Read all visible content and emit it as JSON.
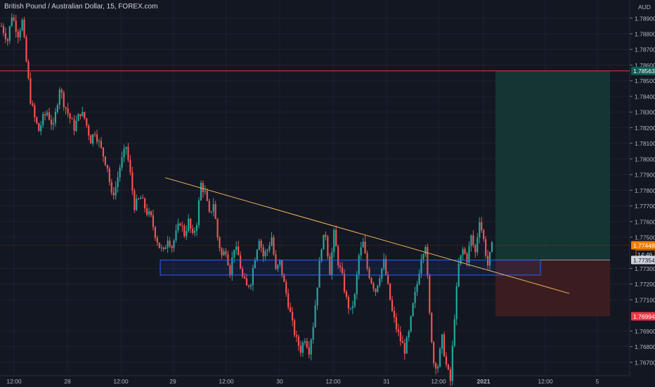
{
  "title": "British Pound / Australian Dollar, 15, FOREX.com",
  "currency": "AUD",
  "colors": {
    "background": "#131722",
    "up": "#26a69a",
    "down": "#ef5350",
    "axis_text": "#b2b5be",
    "grid": "#1e222d",
    "resistance_line": "#e53935",
    "trendline": "#f0b15a",
    "support_box": "#2962ff",
    "target_zone": "#163b36",
    "stop_zone": "#3d1e22",
    "price_tag": "#f57c00",
    "stop_tag": "#f23645",
    "target_tag": "#0e5e54"
  },
  "chart_data": {
    "type": "candlestick",
    "symbol": "British Pound / Australian Dollar",
    "interval": "15",
    "source": "FOREX.com",
    "y_axis": {
      "unit": "AUD",
      "range": [
        1.7665,
        1.7898
      ],
      "ticks": [
        "1.78900",
        "1.78800",
        "1.78700",
        "1.78600",
        "1.78500",
        "1.78400",
        "1.78300",
        "1.78200",
        "1.78100",
        "1.78000",
        "1.77900",
        "1.77800",
        "1.77700",
        "1.77600",
        "1.77500",
        "1.77300",
        "1.77200",
        "1.77100",
        "1.76900",
        "1.76800",
        "1.76700"
      ]
    },
    "x_axis": {
      "ticks": [
        "12:00",
        "28",
        "12:00",
        "29",
        "12:00",
        "30",
        "12:00",
        "31",
        "12:00",
        "2021",
        "12:00",
        "5"
      ]
    },
    "price_labels": {
      "target": "1.78563",
      "current": "1.77448",
      "countdown": "14:46",
      "entry": "1.77354",
      "stop": "1.76994"
    },
    "levels": {
      "resistance": 1.78563,
      "current": 1.77448,
      "entry": 1.77354,
      "stop": 1.76994,
      "support_zone": [
        1.7728,
        1.7734
      ]
    },
    "trendline": {
      "start": {
        "x_label": "29 (before open)",
        "price": 1.7788
      },
      "end": {
        "x_label": "1 Jan, after 12:00",
        "price": 1.7714
      }
    },
    "path": [
      [
        0,
        1.7885
      ],
      [
        3,
        1.7876
      ],
      [
        5,
        1.7892
      ],
      [
        8,
        1.788
      ],
      [
        10,
        1.7888
      ],
      [
        12,
        1.7862
      ],
      [
        14,
        1.7838
      ],
      [
        16,
        1.7826
      ],
      [
        18,
        1.7818
      ],
      [
        20,
        1.7826
      ],
      [
        22,
        1.783
      ],
      [
        25,
        1.782
      ],
      [
        28,
        1.7846
      ],
      [
        30,
        1.7836
      ],
      [
        33,
        1.7826
      ],
      [
        35,
        1.782
      ],
      [
        38,
        1.783
      ],
      [
        40,
        1.7826
      ],
      [
        43,
        1.7812
      ],
      [
        45,
        1.7818
      ],
      [
        48,
        1.7806
      ],
      [
        51,
        1.7795
      ],
      [
        53,
        1.7776
      ],
      [
        55,
        1.7782
      ],
      [
        57,
        1.7795
      ],
      [
        60,
        1.7808
      ],
      [
        62,
        1.779
      ],
      [
        64,
        1.777
      ],
      [
        67,
        1.7775
      ],
      [
        70,
        1.7766
      ],
      [
        72,
        1.7762
      ],
      [
        74,
        1.7752
      ],
      [
        76,
        1.7744
      ],
      [
        78,
        1.774
      ],
      [
        80,
        1.775
      ],
      [
        82,
        1.7744
      ],
      [
        84,
        1.7752
      ],
      [
        86,
        1.776
      ],
      [
        88,
        1.7752
      ],
      [
        90,
        1.776
      ],
      [
        92,
        1.775
      ],
      [
        94,
        1.776
      ],
      [
        96,
        1.7784
      ],
      [
        98,
        1.7778
      ],
      [
        100,
        1.7764
      ],
      [
        102,
        1.7772
      ],
      [
        104,
        1.775
      ],
      [
        106,
        1.7738
      ],
      [
        108,
        1.7742
      ],
      [
        110,
        1.7728
      ],
      [
        112,
        1.7744
      ],
      [
        114,
        1.7738
      ],
      [
        116,
        1.7724
      ],
      [
        118,
        1.7718
      ],
      [
        120,
        1.7722
      ],
      [
        122,
        1.7738
      ],
      [
        124,
        1.775
      ],
      [
        126,
        1.7738
      ],
      [
        128,
        1.7742
      ],
      [
        130,
        1.775
      ],
      [
        132,
        1.7728
      ],
      [
        134,
        1.7734
      ],
      [
        136,
        1.772
      ],
      [
        138,
        1.7708
      ],
      [
        140,
        1.7694
      ],
      [
        142,
        1.7684
      ],
      [
        144,
        1.7678
      ],
      [
        146,
        1.7686
      ],
      [
        148,
        1.7678
      ],
      [
        150,
        1.7694
      ],
      [
        152,
        1.772
      ],
      [
        154,
        1.7745
      ],
      [
        156,
        1.7752
      ],
      [
        158,
        1.7728
      ],
      [
        160,
        1.7752
      ],
      [
        162,
        1.7734
      ],
      [
        164,
        1.7724
      ],
      [
        166,
        1.771
      ],
      [
        168,
        1.7702
      ],
      [
        170,
        1.7712
      ],
      [
        172,
        1.7738
      ],
      [
        174,
        1.7746
      ],
      [
        176,
        1.773
      ],
      [
        178,
        1.7722
      ],
      [
        180,
        1.7716
      ],
      [
        182,
        1.7726
      ],
      [
        184,
        1.7734
      ],
      [
        186,
        1.7718
      ],
      [
        188,
        1.7702
      ],
      [
        190,
        1.7692
      ],
      [
        192,
        1.7684
      ],
      [
        194,
        1.7678
      ],
      [
        196,
        1.7688
      ],
      [
        198,
        1.7706
      ],
      [
        200,
        1.772
      ],
      [
        202,
        1.7738
      ],
      [
        204,
        1.7746
      ],
      [
        206,
        1.77
      ],
      [
        208,
        1.767
      ],
      [
        210,
        1.7668
      ],
      [
        212,
        1.7685
      ],
      [
        214,
        1.7668
      ],
      [
        216,
        1.7658
      ],
      [
        218,
        1.77
      ],
      [
        220,
        1.7732
      ],
      [
        222,
        1.7742
      ],
      [
        224,
        1.7736
      ],
      [
        226,
        1.775
      ],
      [
        228,
        1.774
      ],
      [
        230,
        1.7762
      ],
      [
        232,
        1.7748
      ],
      [
        234,
        1.7732
      ],
      [
        236,
        1.7744
      ]
    ]
  }
}
